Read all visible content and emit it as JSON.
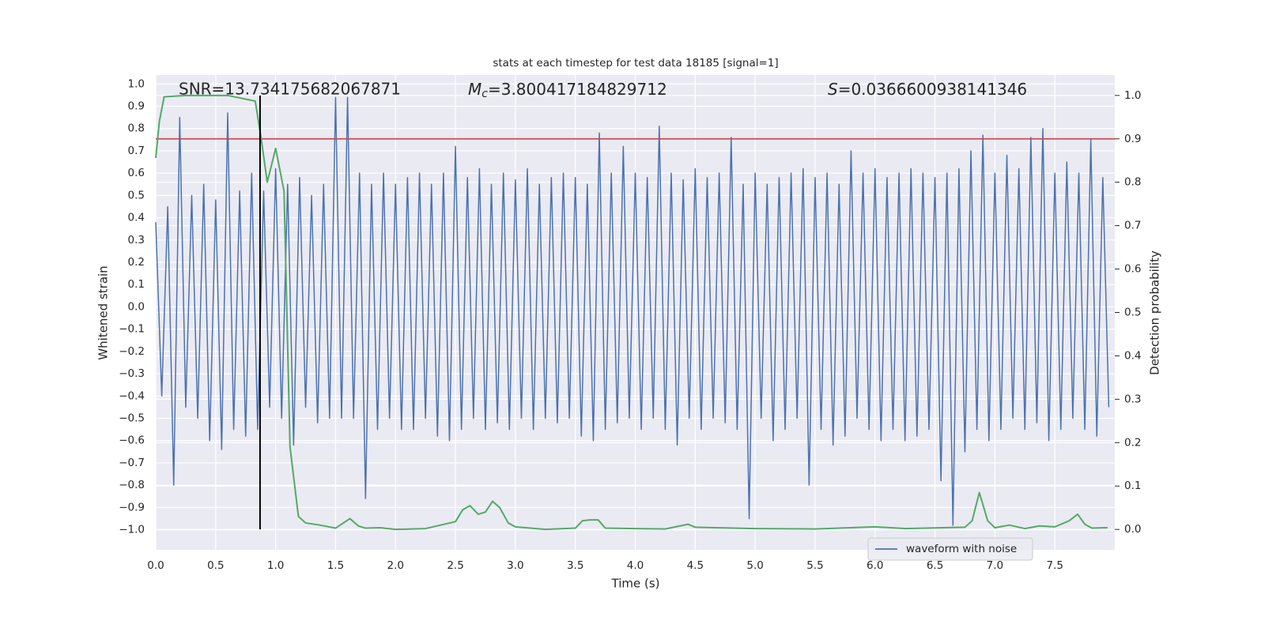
{
  "chart_data": {
    "type": "line",
    "title": "stats at each timestep for test data 18185 [signal=1]",
    "xlabel": "Time (s)",
    "ylabel": "Whitened strain",
    "y2label": "Detection probability",
    "xlim": [
      0,
      8.0
    ],
    "ylim": [
      -1.09,
      1.04
    ],
    "y2lim": [
      -0.047,
      1.047
    ],
    "grid": true,
    "legend": "lower right",
    "xticks": [
      {
        "value": 0,
        "label": "0.0"
      },
      {
        "value": 0.5,
        "label": "0.5"
      },
      {
        "value": 1,
        "label": "1.0"
      },
      {
        "value": 1.5,
        "label": "1.5"
      },
      {
        "value": 2,
        "label": "2.0"
      },
      {
        "value": 2.5,
        "label": "2.5"
      },
      {
        "value": 3,
        "label": "3.0"
      },
      {
        "value": 3.5,
        "label": "3.5"
      },
      {
        "value": 4,
        "label": "4.0"
      },
      {
        "value": 4.5,
        "label": "4.5"
      },
      {
        "value": 5,
        "label": "5.0"
      },
      {
        "value": 5.5,
        "label": "5.5"
      },
      {
        "value": 6,
        "label": "6.0"
      },
      {
        "value": 6.5,
        "label": "6.5"
      },
      {
        "value": 7,
        "label": "7.0"
      },
      {
        "value": 7.5,
        "label": "7.5"
      }
    ],
    "yticks": [
      {
        "value": -1.0,
        "label": "−1.0"
      },
      {
        "value": -0.9,
        "label": "−0.9"
      },
      {
        "value": -0.8,
        "label": "−0.8"
      },
      {
        "value": -0.7,
        "label": "−0.7"
      },
      {
        "value": -0.6,
        "label": "−0.6"
      },
      {
        "value": -0.5,
        "label": "−0.5"
      },
      {
        "value": -0.4,
        "label": "−0.4"
      },
      {
        "value": -0.3,
        "label": "−0.3"
      },
      {
        "value": -0.2,
        "label": "−0.2"
      },
      {
        "value": -0.1,
        "label": "−0.1"
      },
      {
        "value": 0,
        "label": "0.0"
      },
      {
        "value": 0.1,
        "label": "0.1"
      },
      {
        "value": 0.2,
        "label": "0.2"
      },
      {
        "value": 0.3,
        "label": "0.3"
      },
      {
        "value": 0.4,
        "label": "0.4"
      },
      {
        "value": 0.5,
        "label": "0.5"
      },
      {
        "value": 0.6,
        "label": "0.6"
      },
      {
        "value": 0.7,
        "label": "0.7"
      },
      {
        "value": 0.8,
        "label": "0.8"
      },
      {
        "value": 0.9,
        "label": "0.9"
      },
      {
        "value": 1.0,
        "label": "1.0"
      }
    ],
    "y2ticks": [
      {
        "value": 0,
        "label": "0.0"
      },
      {
        "value": 0.1,
        "label": "0.1"
      },
      {
        "value": 0.2,
        "label": "0.2"
      },
      {
        "value": 0.3,
        "label": "0.3"
      },
      {
        "value": 0.4,
        "label": "0.4"
      },
      {
        "value": 0.5,
        "label": "0.5"
      },
      {
        "value": 0.6,
        "label": "0.6"
      },
      {
        "value": 0.7,
        "label": "0.7"
      },
      {
        "value": 0.8,
        "label": "0.8"
      },
      {
        "value": 0.9,
        "label": "0.9"
      },
      {
        "value": 1.0,
        "label": "1.0"
      }
    ],
    "annotations": [
      {
        "text": "SNR=13.734175682067871"
      },
      {
        "symbol": "M",
        "subscript": "c",
        "text": "=3.800417184829712"
      },
      {
        "symbol": "S",
        "text": "=0.0366600938141346"
      }
    ],
    "series": [
      {
        "name": "waveform with noise",
        "color": "#4c72b0",
        "x": [
          0,
          0.05,
          0.1,
          0.15,
          0.2,
          0.25,
          0.3,
          0.35,
          0.4,
          0.45,
          0.5,
          0.55,
          0.6,
          0.65,
          0.7,
          0.75,
          0.8,
          0.85,
          0.9,
          0.95,
          1,
          1.05,
          1.1,
          1.15,
          1.2,
          1.25,
          1.3,
          1.35,
          1.4,
          1.45,
          1.5,
          1.55,
          1.6,
          1.65,
          1.7,
          1.75,
          1.8,
          1.85,
          1.9,
          1.95,
          2,
          2.05,
          2.1,
          2.15,
          2.2,
          2.25,
          2.3,
          2.35,
          2.4,
          2.45,
          2.5,
          2.55,
          2.6,
          2.65,
          2.7,
          2.75,
          2.8,
          2.85,
          2.9,
          2.95,
          3,
          3.05,
          3.1,
          3.15,
          3.2,
          3.25,
          3.3,
          3.35,
          3.4,
          3.45,
          3.5,
          3.55,
          3.6,
          3.65,
          3.7,
          3.75,
          3.8,
          3.85,
          3.9,
          3.95,
          4,
          4.05,
          4.1,
          4.15,
          4.2,
          4.25,
          4.3,
          4.35,
          4.4,
          4.45,
          4.5,
          4.55,
          4.6,
          4.65,
          4.7,
          4.75,
          4.8,
          4.85,
          4.9,
          4.95,
          5,
          5.05,
          5.1,
          5.15,
          5.2,
          5.25,
          5.3,
          5.35,
          5.4,
          5.45,
          5.5,
          5.55,
          5.6,
          5.65,
          5.7,
          5.75,
          5.8,
          5.85,
          5.9,
          5.95,
          6,
          6.05,
          6.1,
          6.15,
          6.2,
          6.25,
          6.3,
          6.35,
          6.4,
          6.45,
          6.5,
          6.55,
          6.6,
          6.65,
          6.7,
          6.75,
          6.8,
          6.85,
          6.9,
          6.95,
          7,
          7.05,
          7.1,
          7.15,
          7.2,
          7.25,
          7.3,
          7.35,
          7.4,
          7.45,
          7.5,
          7.55,
          7.6,
          7.65,
          7.7,
          7.75,
          7.8,
          7.85,
          7.9,
          7.95
        ],
        "values": [
          0.38,
          -0.4,
          0.45,
          -0.8,
          0.85,
          -0.45,
          0.5,
          -0.5,
          0.55,
          -0.6,
          0.48,
          -0.64,
          0.87,
          -0.55,
          0.52,
          -0.58,
          0.6,
          -0.55,
          0.52,
          -0.45,
          0.62,
          -0.5,
          0.55,
          -0.62,
          0.58,
          -0.45,
          0.5,
          -0.52,
          0.55,
          -0.5,
          0.94,
          -0.5,
          0.94,
          -0.5,
          0.6,
          -0.86,
          0.55,
          -0.55,
          0.6,
          -0.5,
          0.55,
          -0.55,
          0.58,
          -0.55,
          0.6,
          -0.5,
          0.55,
          -0.58,
          0.6,
          -0.6,
          0.72,
          -0.55,
          0.58,
          -0.5,
          0.62,
          -0.55,
          0.55,
          -0.52,
          0.6,
          -0.55,
          0.57,
          -0.5,
          0.62,
          -0.55,
          0.55,
          -0.5,
          0.58,
          -0.52,
          0.6,
          -0.5,
          0.58,
          -0.58,
          0.55,
          -0.6,
          0.78,
          -0.55,
          0.6,
          -0.52,
          0.72,
          -0.5,
          0.6,
          -0.55,
          0.58,
          -0.5,
          0.81,
          -0.55,
          0.6,
          -0.62,
          0.57,
          -0.5,
          0.62,
          -0.55,
          0.58,
          -0.5,
          0.6,
          -0.52,
          0.76,
          -0.55,
          0.55,
          -0.95,
          0.6,
          -0.5,
          0.55,
          -0.6,
          0.58,
          -0.55,
          0.6,
          -0.5,
          0.62,
          -0.8,
          0.58,
          -0.55,
          0.6,
          -0.62,
          0.55,
          -0.58,
          0.7,
          -0.5,
          0.6,
          -0.55,
          0.62,
          -0.6,
          0.58,
          -0.55,
          0.6,
          -0.6,
          0.62,
          -0.58,
          0.6,
          -0.55,
          0.58,
          -0.78,
          0.6,
          -0.98,
          0.62,
          -0.65,
          0.7,
          -0.55,
          0.77,
          -0.6,
          0.6,
          -0.55,
          0.68,
          -0.5,
          0.62,
          -0.55,
          0.76,
          -0.52,
          0.8,
          -0.6,
          0.6,
          -0.55,
          0.65,
          -0.5,
          0.6,
          -0.55,
          0.75,
          -0.58,
          0.58,
          -0.45
        ]
      },
      {
        "color": "#55a868",
        "axis": "y2",
        "x": [
          0,
          0.03,
          0.07,
          0.25,
          0.6,
          0.83,
          0.88,
          0.93,
          1.0,
          1.07,
          1.12,
          1.19,
          1.25,
          1.37,
          1.5,
          1.62,
          1.69,
          1.75,
          1.87,
          2.0,
          2.25,
          2.5,
          2.56,
          2.62,
          2.69,
          2.75,
          2.81,
          2.87,
          2.94,
          3.0,
          3.25,
          3.5,
          3.56,
          3.62,
          3.69,
          3.75,
          4.0,
          4.25,
          4.44,
          4.5,
          5.0,
          5.5,
          6.0,
          6.25,
          6.75,
          6.81,
          6.87,
          6.94,
          7.0,
          7.12,
          7.25,
          7.37,
          7.5,
          7.62,
          7.69,
          7.75,
          7.81,
          7.94
        ],
        "values": [
          0.856,
          0.94,
          0.997,
          1.0,
          1.0,
          0.987,
          0.9,
          0.8,
          0.878,
          0.78,
          0.19,
          0.03,
          0.015,
          0.01,
          0.003,
          0.025,
          0.008,
          0.003,
          0.004,
          0.0,
          0.002,
          0.018,
          0.045,
          0.055,
          0.035,
          0.04,
          0.065,
          0.05,
          0.015,
          0.006,
          0.0,
          0.003,
          0.02,
          0.022,
          0.022,
          0.003,
          0.002,
          0.001,
          0.012,
          0.005,
          0.002,
          0.001,
          0.006,
          0.002,
          0.005,
          0.02,
          0.085,
          0.02,
          0.004,
          0.01,
          0.002,
          0.008,
          0.006,
          0.02,
          0.035,
          0.012,
          0.003,
          0.004
        ]
      }
    ],
    "hlines": [
      {
        "y2": 0.9,
        "color": "#c44e52"
      }
    ],
    "vlines": [
      {
        "x": 0.87,
        "ymin": 0,
        "ymax": 1,
        "color": "#000000"
      }
    ]
  }
}
